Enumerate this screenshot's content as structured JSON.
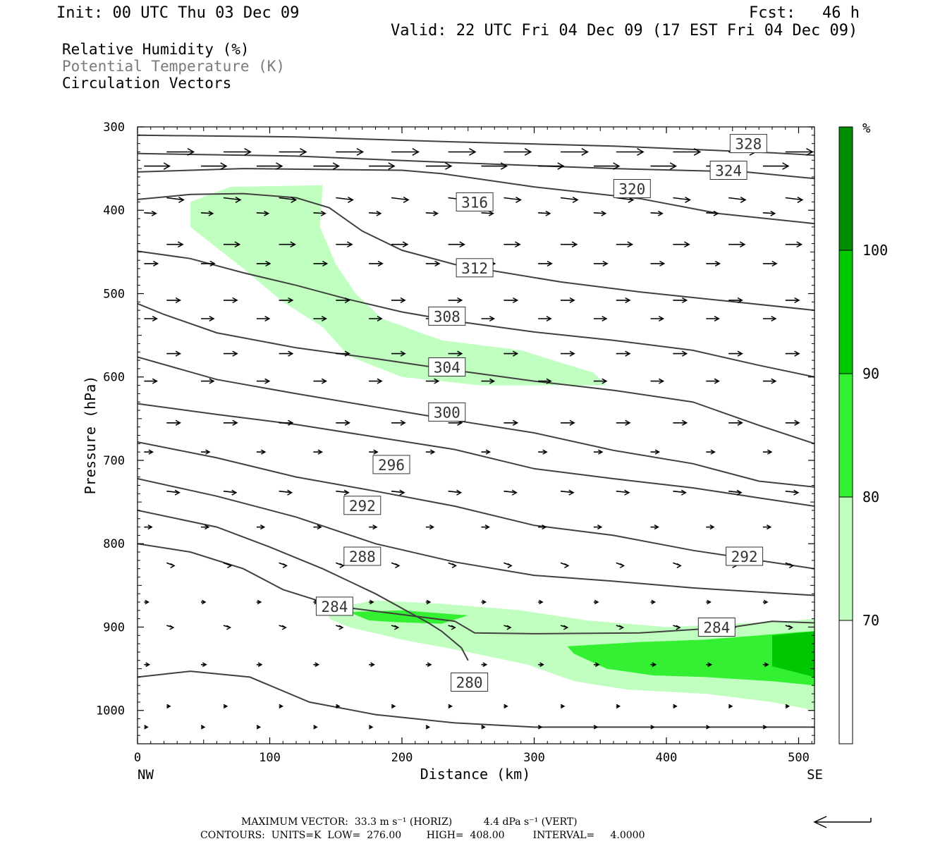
{
  "header": {
    "init": "Init: 00 UTC Thu 03 Dec 09",
    "fcst_label": "Fcst:",
    "fcst_value": "46 h",
    "valid": "Valid: 22 UTC Fri 04 Dec 09 (17 EST Fri 04 Dec 09)"
  },
  "legend": {
    "rh": "Relative Humidity (%)",
    "theta": "Potential Temperature (K)",
    "vectors": "Circulation Vectors"
  },
  "colors": {
    "rh_70": "#c0ffc0",
    "rh_80": "#33f033",
    "rh_90": "#00c800",
    "rh_100": "#008c00",
    "contour": "#404040"
  },
  "chart_data": {
    "type": "cross-section",
    "xlabel": "Distance (km)",
    "ylabel": "Pressure (hPa)",
    "xlim": [
      0,
      512
    ],
    "ylim": [
      1040,
      300
    ],
    "x_ticks": [
      "0",
      "100",
      "200",
      "300",
      "400",
      "500"
    ],
    "y_ticks": [
      "300",
      "400",
      "500",
      "600",
      "700",
      "800",
      "900",
      "1000"
    ],
    "x_end_labels": {
      "left": "NW",
      "right": "SE"
    },
    "colorbar": {
      "unit": "%",
      "levels": [
        "70",
        "80",
        "90",
        "100"
      ]
    },
    "theta_contours": [
      {
        "label": "328",
        "pts": [
          [
            0,
            310
          ],
          [
            120,
            312
          ],
          [
            240,
            318
          ],
          [
            360,
            323
          ],
          [
            480,
            331
          ],
          [
            512,
            334
          ]
        ]
      },
      {
        "label": "324",
        "pts": [
          [
            0,
            332
          ],
          [
            120,
            335
          ],
          [
            240,
            343
          ],
          [
            360,
            350
          ],
          [
            460,
            354
          ],
          [
            512,
            362
          ]
        ]
      },
      {
        "label": "320",
        "pts": [
          [
            0,
            354
          ],
          [
            80,
            350
          ],
          [
            200,
            352
          ],
          [
            230,
            356
          ],
          [
            300,
            372
          ],
          [
            380,
            386
          ],
          [
            440,
            404
          ],
          [
            512,
            416
          ]
        ]
      },
      {
        "label": "316",
        "pts": [
          [
            0,
            387
          ],
          [
            40,
            381
          ],
          [
            80,
            380
          ],
          [
            120,
            385
          ],
          [
            145,
            397
          ],
          [
            170,
            425
          ],
          [
            200,
            448
          ],
          [
            240,
            465
          ],
          [
            320,
            486
          ],
          [
            380,
            498
          ],
          [
            440,
            508
          ],
          [
            512,
            520
          ]
        ]
      },
      {
        "label": "312",
        "pts": [
          [
            0,
            449
          ],
          [
            40,
            458
          ],
          [
            80,
            475
          ],
          [
            120,
            490
          ],
          [
            160,
            507
          ],
          [
            200,
            522
          ],
          [
            240,
            533
          ],
          [
            300,
            546
          ],
          [
            360,
            556
          ],
          [
            420,
            568
          ],
          [
            470,
            586
          ],
          [
            512,
            600
          ]
        ]
      },
      {
        "label": "308",
        "pts": [
          [
            0,
            512
          ],
          [
            20,
            525
          ],
          [
            60,
            547
          ],
          [
            120,
            565
          ],
          [
            180,
            578
          ],
          [
            240,
            592
          ],
          [
            300,
            605
          ],
          [
            360,
            616
          ],
          [
            420,
            630
          ],
          [
            470,
            658
          ],
          [
            512,
            680
          ]
        ]
      },
      {
        "label": "304",
        "pts": [
          [
            0,
            576
          ],
          [
            60,
            603
          ],
          [
            120,
            620
          ],
          [
            180,
            636
          ],
          [
            240,
            652
          ],
          [
            300,
            667
          ],
          [
            360,
            688
          ],
          [
            420,
            704
          ],
          [
            470,
            725
          ],
          [
            512,
            732
          ]
        ]
      },
      {
        "label": "300",
        "pts": [
          [
            0,
            632
          ],
          [
            60,
            645
          ],
          [
            120,
            657
          ],
          [
            180,
            672
          ],
          [
            240,
            687
          ],
          [
            300,
            710
          ],
          [
            360,
            722
          ],
          [
            420,
            733
          ],
          [
            470,
            745
          ],
          [
            512,
            755
          ]
        ]
      },
      {
        "label": "296",
        "pts": [
          [
            0,
            678
          ],
          [
            60,
            697
          ],
          [
            120,
            720
          ],
          [
            180,
            737
          ],
          [
            240,
            755
          ],
          [
            300,
            778
          ],
          [
            360,
            790
          ],
          [
            420,
            808
          ],
          [
            470,
            820
          ],
          [
            512,
            830
          ]
        ]
      },
      {
        "label": "292",
        "pts": [
          [
            0,
            722
          ],
          [
            60,
            743
          ],
          [
            120,
            768
          ],
          [
            180,
            800
          ],
          [
            240,
            822
          ],
          [
            300,
            838
          ],
          [
            360,
            845
          ],
          [
            420,
            853
          ],
          [
            470,
            858
          ],
          [
            512,
            862
          ]
        ]
      },
      {
        "label": "288",
        "pts": [
          [
            0,
            760
          ],
          [
            60,
            780
          ],
          [
            100,
            804
          ],
          [
            140,
            830
          ],
          [
            180,
            860
          ],
          [
            220,
            895
          ],
          [
            230,
            905
          ],
          [
            245,
            925
          ],
          [
            250,
            940
          ]
        ]
      },
      {
        "label": "284",
        "pts": [
          [
            0,
            800
          ],
          [
            40,
            810
          ],
          [
            80,
            830
          ],
          [
            110,
            855
          ],
          [
            150,
            875
          ],
          [
            200,
            885
          ],
          [
            240,
            893
          ],
          [
            255,
            907
          ],
          [
            300,
            908
          ],
          [
            380,
            907
          ],
          [
            450,
            900
          ],
          [
            480,
            893
          ],
          [
            512,
            895
          ]
        ]
      },
      {
        "label": "280",
        "pts": [
          [
            0,
            960
          ],
          [
            40,
            953
          ],
          [
            85,
            960
          ],
          [
            130,
            990
          ],
          [
            180,
            1005
          ],
          [
            240,
            1015
          ],
          [
            300,
            1020
          ],
          [
            420,
            1020
          ],
          [
            512,
            1020
          ]
        ]
      }
    ],
    "rh_regions": [
      {
        "level": "70",
        "pts": [
          [
            40,
            390
          ],
          [
            70,
            372
          ],
          [
            140,
            370
          ],
          [
            138,
            420
          ],
          [
            150,
            465
          ],
          [
            165,
            500
          ],
          [
            185,
            530
          ],
          [
            230,
            556
          ],
          [
            290,
            568
          ],
          [
            345,
            595
          ],
          [
            355,
            610
          ],
          [
            260,
            610
          ],
          [
            200,
            600
          ],
          [
            160,
            575
          ],
          [
            140,
            540
          ],
          [
            110,
            510
          ],
          [
            80,
            470
          ],
          [
            60,
            445
          ],
          [
            40,
            420
          ]
        ]
      },
      {
        "level": "70",
        "pts": [
          [
            145,
            878
          ],
          [
            180,
            868
          ],
          [
            230,
            872
          ],
          [
            290,
            880
          ],
          [
            340,
            892
          ],
          [
            400,
            900
          ],
          [
            450,
            896
          ],
          [
            490,
            893
          ],
          [
            512,
            890
          ],
          [
            512,
            1000
          ],
          [
            480,
            990
          ],
          [
            430,
            980
          ],
          [
            370,
            975
          ],
          [
            330,
            965
          ],
          [
            295,
            945
          ],
          [
            250,
            930
          ],
          [
            200,
            915
          ],
          [
            160,
            900
          ],
          [
            145,
            890
          ]
        ]
      },
      {
        "level": "80",
        "pts": [
          [
            160,
            882
          ],
          [
            200,
            880
          ],
          [
            250,
            886
          ],
          [
            230,
            896
          ],
          [
            195,
            894
          ],
          [
            175,
            892
          ]
        ]
      },
      {
        "level": "80",
        "pts": [
          [
            325,
            923
          ],
          [
            380,
            918
          ],
          [
            430,
            915
          ],
          [
            470,
            910
          ],
          [
            500,
            906
          ],
          [
            512,
            905
          ],
          [
            512,
            970
          ],
          [
            480,
            965
          ],
          [
            430,
            960
          ],
          [
            390,
            958
          ],
          [
            355,
            950
          ],
          [
            330,
            932
          ]
        ]
      },
      {
        "level": "90",
        "pts": [
          [
            480,
            910
          ],
          [
            512,
            905
          ],
          [
            512,
            960
          ],
          [
            500,
            955
          ],
          [
            480,
            947
          ]
        ]
      }
    ],
    "label_boxes": [
      {
        "text": "328",
        "x": 462,
        "p": 320
      },
      {
        "text": "324",
        "x": 447,
        "p": 352
      },
      {
        "text": "320",
        "x": 374,
        "p": 374
      },
      {
        "text": "316",
        "x": 255,
        "p": 390
      },
      {
        "text": "312",
        "x": 255,
        "p": 469
      },
      {
        "text": "308",
        "x": 234,
        "p": 527
      },
      {
        "text": "304",
        "x": 234,
        "p": 588
      },
      {
        "text": "300",
        "x": 234,
        "p": 642
      },
      {
        "text": "296",
        "x": 192,
        "p": 705
      },
      {
        "text": "292",
        "x": 170,
        "p": 754
      },
      {
        "text": "292",
        "x": 459,
        "p": 815
      },
      {
        "text": "288",
        "x": 170,
        "p": 815
      },
      {
        "text": "284",
        "x": 149,
        "p": 875
      },
      {
        "text": "284",
        "x": 438,
        "p": 900
      },
      {
        "text": "280",
        "x": 251,
        "p": 966
      }
    ],
    "vector_levels": [
      {
        "p": 330,
        "dx": 3.2,
        "dp": 0
      },
      {
        "p": 347,
        "dx": 3.0,
        "dp": 0
      },
      {
        "p": 385,
        "dx": 2.0,
        "dp": 3
      },
      {
        "p": 403,
        "dx": 1.4,
        "dp": 1
      },
      {
        "p": 441,
        "dx": 1.9,
        "dp": 0
      },
      {
        "p": 464,
        "dx": 1.6,
        "dp": 0
      },
      {
        "p": 508,
        "dx": 1.6,
        "dp": 0
      },
      {
        "p": 530,
        "dx": 1.5,
        "dp": 0
      },
      {
        "p": 572,
        "dx": 1.6,
        "dp": 0
      },
      {
        "p": 605,
        "dx": 1.5,
        "dp": 0
      },
      {
        "p": 655,
        "dx": 1.6,
        "dp": 0
      },
      {
        "p": 690,
        "dx": 1.0,
        "dp": 0
      },
      {
        "p": 737,
        "dx": 1.5,
        "dp": 2
      },
      {
        "p": 780,
        "dx": 0.9,
        "dp": 0
      },
      {
        "p": 823,
        "dx": 0.9,
        "dp": 4
      },
      {
        "p": 870,
        "dx": 0.5,
        "dp": 0
      },
      {
        "p": 898,
        "dx": 0.8,
        "dp": 3
      },
      {
        "p": 945,
        "dx": 0.6,
        "dp": 0
      },
      {
        "p": 995,
        "dx": 0.4,
        "dp": 0
      },
      {
        "p": 1020,
        "dx": 0.4,
        "dp": 0
      }
    ]
  },
  "footer": {
    "max_vector": "MAXIMUM VECTOR:  33.3 m s⁻¹ (HORIZ)          4.4 dPa s⁻¹ (VERT)",
    "contours": "CONTOURS:  UNITS=K  LOW=  276.00        HIGH=  408.00         INTERVAL=     4.0000"
  }
}
